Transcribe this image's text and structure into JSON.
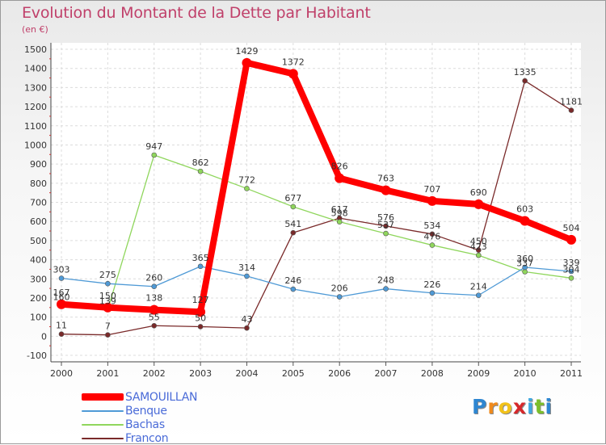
{
  "title": "Evolution du Montant de la Dette par Habitant",
  "unit": "(en €)",
  "logo": {
    "letters": [
      "P",
      "r",
      "o",
      "x",
      "i",
      "t",
      "i"
    ],
    "colors": [
      "#2e86d1",
      "#f08a1c",
      "#f2c21a",
      "#d6282b",
      "#40a8e0",
      "#7bbf2a",
      "#2e86d1"
    ]
  },
  "chart_data": {
    "type": "line",
    "title": "Evolution du Montant de la Dette par Habitant",
    "ylabel": "(en €)",
    "x": [
      "2000",
      "2001",
      "2002",
      "2003",
      "2004",
      "2005",
      "2006",
      "2007",
      "2008",
      "2009",
      "2010",
      "2011"
    ],
    "ylim": [
      -100,
      1500
    ],
    "yticks": [
      -100,
      0,
      100,
      200,
      300,
      400,
      500,
      600,
      700,
      800,
      900,
      1000,
      1100,
      1200,
      1300,
      1400,
      1500
    ],
    "grid": true,
    "legend_position": "bottom-left",
    "series": [
      {
        "name": "SAMOUILLAN",
        "color": "#ff0000",
        "values": [
          167,
          150,
          138,
          127,
          1429,
          1372,
          826,
          763,
          707,
          690,
          603,
          504
        ],
        "labels": [
          "167",
          "150",
          "138",
          "127",
          "1429",
          "1372",
          "826",
          "763",
          "707",
          "690",
          "603",
          "504"
        ]
      },
      {
        "name": "Benque",
        "color": "#4f9ad6",
        "values": [
          303,
          275,
          260,
          365,
          314,
          246,
          206,
          248,
          226,
          214,
          360,
          339
        ],
        "labels": [
          "303",
          "275",
          "260",
          "365",
          "314",
          "246",
          "206",
          "248",
          "226",
          "214",
          "360",
          "339"
        ]
      },
      {
        "name": "Bachas",
        "color": "#8fd65c",
        "values": [
          160,
          139,
          947,
          862,
          772,
          677,
          598,
          537,
          476,
          423,
          337,
          304
        ],
        "labels": [
          "160",
          "139",
          "947",
          "862",
          "772",
          "677",
          "598",
          "537",
          "476",
          "423",
          "337",
          "304"
        ]
      },
      {
        "name": "Francon",
        "color": "#7a2a2a",
        "values": [
          11,
          7,
          55,
          50,
          43,
          541,
          617,
          576,
          534,
          450,
          1335,
          1181
        ],
        "labels": [
          "11",
          "7",
          "55",
          "50",
          "43",
          "541",
          "617",
          "576",
          "534",
          "450",
          "1335",
          "1181"
        ]
      }
    ]
  }
}
